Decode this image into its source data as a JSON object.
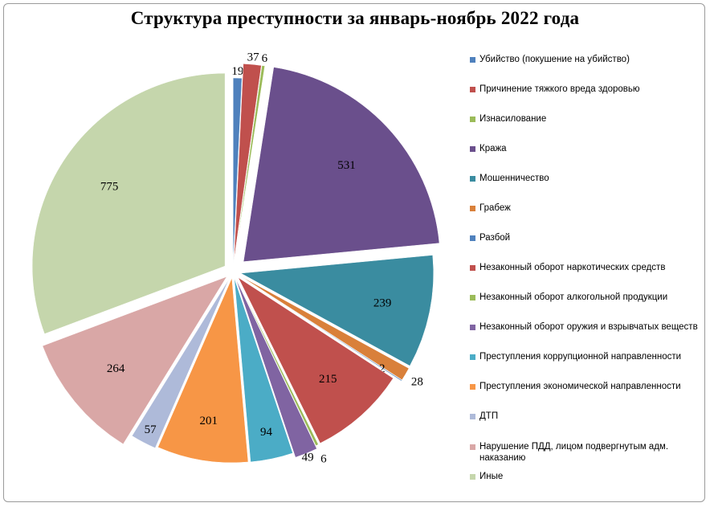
{
  "chart_data": {
    "type": "pie",
    "title": "Структура преступности за январь-ноябрь 2022 года",
    "legend_position": "right",
    "slices": [
      {
        "label": "Убийство (покушение на убийство)",
        "value": 19,
        "color": "#4f81bd"
      },
      {
        "label": "Причинение тяжкого вреда здоровью",
        "value": 37,
        "color": "#c0504d"
      },
      {
        "label": "Изнасилование",
        "value": 6,
        "color": "#9bbb59"
      },
      {
        "label": "Кража",
        "value": 531,
        "color": "#6a4f8c"
      },
      {
        "label": "Мошенничество",
        "value": 239,
        "color": "#3a8ca0"
      },
      {
        "label": "Грабеж",
        "value": 28,
        "color": "#d9803a"
      },
      {
        "label": "Разбой",
        "value": 2,
        "color": "#4f81bd"
      },
      {
        "label": "Незаконный оборот наркотических средств",
        "value": 215,
        "color": "#c0504d"
      },
      {
        "label": "Незаконный оборот алкогольной продукции",
        "value": 6,
        "color": "#9bbb59"
      },
      {
        "label": "Незаконный оборот оружия и взрывчатых веществ",
        "value": 49,
        "color": "#8064a2"
      },
      {
        "label": "Преступления коррупционной направленности",
        "value": 94,
        "color": "#4bacc6"
      },
      {
        "label": "Преступления экономической направленности",
        "value": 201,
        "color": "#f79646"
      },
      {
        "label": "ДТП",
        "value": 57,
        "color": "#aebad9"
      },
      {
        "label": "Нарушение ПДД, лицом подвергнутым адм. наказанию",
        "value": 264,
        "color": "#d9a7a6"
      },
      {
        "label": "Иные",
        "value": 775,
        "color": "#c5d6ac"
      }
    ]
  }
}
